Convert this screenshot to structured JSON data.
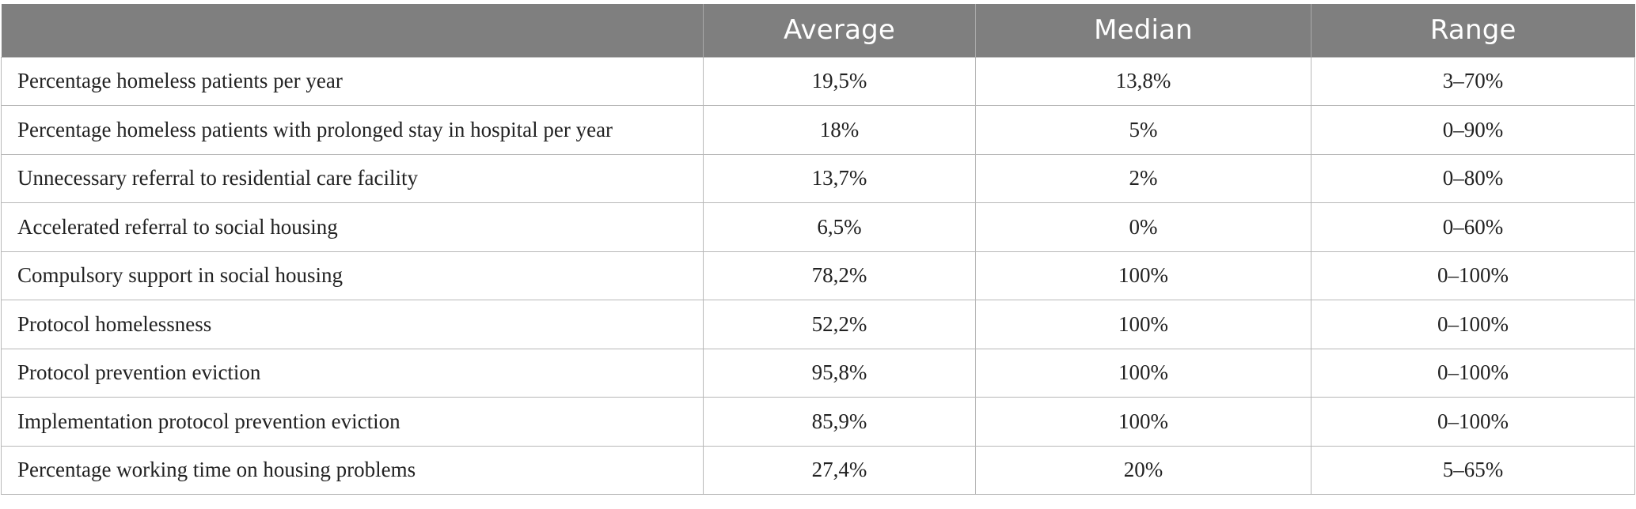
{
  "table": {
    "headers": [
      "",
      "Average",
      "Median",
      "Range"
    ],
    "rows": [
      {
        "label": "Percentage homeless patients per year",
        "average": "19,5%",
        "median": "13,8%",
        "range": "3–70%"
      },
      {
        "label": "Percentage homeless patients with prolonged stay in hospital per year",
        "average": "18%",
        "median": "5%",
        "range": "0–90%"
      },
      {
        "label": "Unnecessary referral to residential care facility",
        "average": "13,7%",
        "median": "2%",
        "range": "0–80%"
      },
      {
        "label": "Accelerated referral to social housing",
        "average": "6,5%",
        "median": "0%",
        "range": "0–60%"
      },
      {
        "label": "Compulsory support in social housing",
        "average": "78,2%",
        "median": "100%",
        "range": "0–100%"
      },
      {
        "label": "Protocol homelessness",
        "average": "52,2%",
        "median": "100%",
        "range": "0–100%"
      },
      {
        "label": "Protocol prevention eviction",
        "average": "95,8%",
        "median": "100%",
        "range": "0–100%"
      },
      {
        "label": "Implementation protocol prevention eviction",
        "average": "85,9%",
        "median": "100%",
        "range": "0–100%"
      },
      {
        "label": "Percentage working time on housing problems",
        "average": "27,4%",
        "median": "20%",
        "range": "5–65%"
      }
    ]
  },
  "colors": {
    "header_background": "#7f7f7f",
    "header_text": "#ffffff",
    "grid_line": "#b8b8b8",
    "body_text": "#222222"
  }
}
